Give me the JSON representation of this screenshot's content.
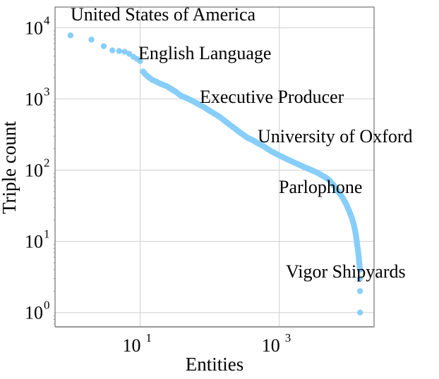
{
  "chart_data": {
    "type": "scatter",
    "title": "",
    "xlabel": "Entities",
    "ylabel": "Triple count",
    "xscale": "log",
    "yscale": "log",
    "xlim": [
      0.6,
      23000
    ],
    "ylim": [
      0.63,
      19500
    ],
    "grid": true,
    "marker_color": "#87CEFA",
    "x_ticks": [
      {
        "base": "10",
        "exp": "1",
        "value": 10
      },
      {
        "base": "10",
        "exp": "3",
        "value": 1000
      }
    ],
    "y_ticks": [
      {
        "base": "10",
        "exp": "0",
        "value": 1
      },
      {
        "base": "10",
        "exp": "1",
        "value": 10
      },
      {
        "base": "10",
        "exp": "2",
        "value": 100
      },
      {
        "base": "10",
        "exp": "3",
        "value": 1000
      },
      {
        "base": "10",
        "exp": "4",
        "value": 10000
      }
    ],
    "series": [
      {
        "name": "entities",
        "points": [
          [
            1,
            7800
          ],
          [
            2,
            6800
          ],
          [
            3,
            5500
          ],
          [
            4,
            4800
          ],
          [
            5,
            4700
          ],
          [
            6,
            4600
          ],
          [
            7,
            4300
          ],
          [
            8,
            3900
          ],
          [
            9,
            3650
          ],
          [
            10,
            3400
          ],
          [
            11,
            2430
          ],
          [
            12,
            2200
          ],
          [
            13,
            2050
          ],
          [
            15,
            1850
          ],
          [
            17,
            1750
          ],
          [
            20,
            1620
          ],
          [
            24,
            1510
          ],
          [
            28,
            1380
          ],
          [
            33,
            1250
          ],
          [
            38,
            1120
          ],
          [
            45,
            1040
          ],
          [
            55,
            950
          ],
          [
            68,
            850
          ],
          [
            80,
            780
          ],
          [
            100,
            680
          ],
          [
            120,
            610
          ],
          [
            137,
            565
          ],
          [
            170,
            480
          ],
          [
            210,
            410
          ],
          [
            277,
            334
          ],
          [
            350,
            285
          ],
          [
            420,
            262
          ],
          [
            493,
            238
          ],
          [
            600,
            215
          ],
          [
            750,
            186
          ],
          [
            1000,
            161
          ],
          [
            1300,
            142
          ],
          [
            1790,
            123
          ],
          [
            2300,
            110
          ],
          [
            2900,
            100
          ],
          [
            3600,
            91
          ],
          [
            4300,
            82
          ],
          [
            5100,
            74
          ],
          [
            6000,
            62
          ],
          [
            6950,
            51
          ],
          [
            8000,
            42
          ],
          [
            9200,
            33
          ],
          [
            10200,
            26
          ],
          [
            11100,
            21
          ],
          [
            11800,
            17
          ],
          [
            12500,
            13
          ],
          [
            13100,
            9.3
          ],
          [
            13500,
            7.5
          ],
          [
            13700,
            6.6
          ],
          [
            13900,
            5.8
          ],
          [
            14100,
            5
          ],
          [
            14400,
            4
          ],
          [
            14400,
            3
          ],
          [
            14450,
            2
          ],
          [
            14500,
            1
          ]
        ]
      }
    ],
    "annotations": [
      {
        "text": "United States of America",
        "x": 1,
        "y": 7800
      },
      {
        "text": "English Language",
        "x": 10,
        "y": 3400
      },
      {
        "text": "Executive Producer",
        "x": 70,
        "y": 850
      },
      {
        "text": "University of Oxford",
        "x": 500,
        "y": 238
      },
      {
        "text": "Parlophone",
        "x": 1800,
        "y": 60
      },
      {
        "text": "Vigor Shipyards",
        "x": 14500,
        "y": 3
      }
    ]
  }
}
